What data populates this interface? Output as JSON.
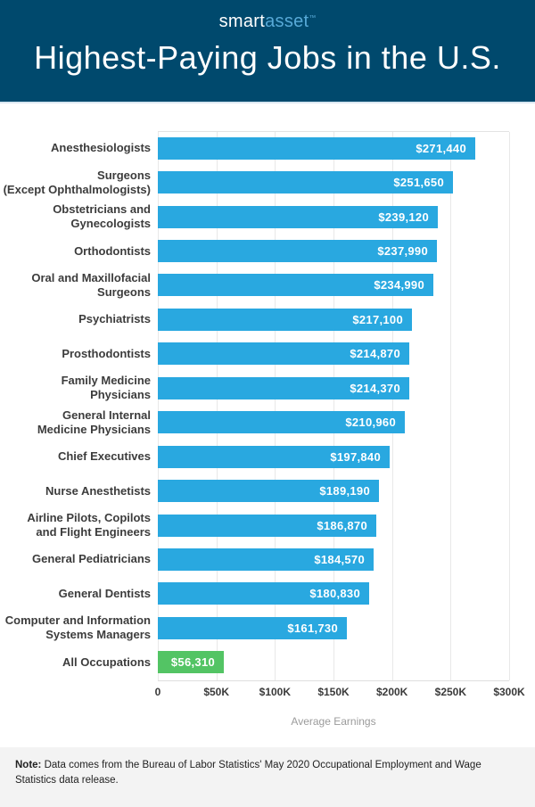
{
  "header": {
    "logo_smart": "smart",
    "logo_asset": "asset",
    "logo_tm": "™",
    "title": "Highest-Paying Jobs in the U.S."
  },
  "chart_data": {
    "type": "bar",
    "orientation": "horizontal",
    "title": "Highest-Paying Jobs in the U.S.",
    "xlabel": "Average Earnings",
    "xlim": [
      0,
      300000
    ],
    "grid": true,
    "bar_color": "#29A8E0",
    "highlight_color": "#53C464",
    "highlight_index": 15,
    "x_ticks": [
      {
        "value": 0,
        "label": "0"
      },
      {
        "value": 50000,
        "label": "$50K"
      },
      {
        "value": 100000,
        "label": "$100K"
      },
      {
        "value": 150000,
        "label": "$150K"
      },
      {
        "value": 200000,
        "label": "$200K"
      },
      {
        "value": 250000,
        "label": "$250K"
      },
      {
        "value": 300000,
        "label": "$300K"
      }
    ],
    "categories": [
      "Anesthesiologists",
      "Surgeons\n(Except Ophthalmologists)",
      "Obstetricians and\nGynecologists",
      "Orthodontists",
      "Oral and Maxillofacial\nSurgeons",
      "Psychiatrists",
      "Prosthodontists",
      "Family Medicine Physicians",
      "General Internal\nMedicine Physicians",
      "Chief Executives",
      "Nurse Anesthetists",
      "Airline Pilots, Copilots\nand Flight Engineers",
      "General Pediatricians",
      "General Dentists",
      "Computer and Information\nSystems Managers",
      "All Occupations"
    ],
    "values": [
      271440,
      251650,
      239120,
      237990,
      234990,
      217100,
      214870,
      214370,
      210960,
      197840,
      189190,
      186870,
      184570,
      180830,
      161730,
      56310
    ],
    "value_labels": [
      "$271,440",
      "$251,650",
      "$239,120",
      "$237,990",
      "$234,990",
      "$217,100",
      "$214,870",
      "$214,370",
      "$210,960",
      "$197,840",
      "$189,190",
      "$186,870",
      "$184,570",
      "$180,830",
      "$161,730",
      "$56,310"
    ]
  },
  "footer": {
    "note_label": "Note:",
    "note_text": " Data comes from the Bureau of Labor Statistics' May 2020 Occupational Employment and Wage Statistics data release."
  },
  "colors": {
    "header_bg": "#00496D",
    "logo_asset_blue": "#57A9D7",
    "bar_blue": "#29A8E0",
    "bar_green": "#53C464",
    "gridline": "#E8E8E8",
    "footer_bg": "#F3F3F3",
    "label_dark": "#3C3C3C",
    "axis_label_gray": "#9B9B9B"
  }
}
